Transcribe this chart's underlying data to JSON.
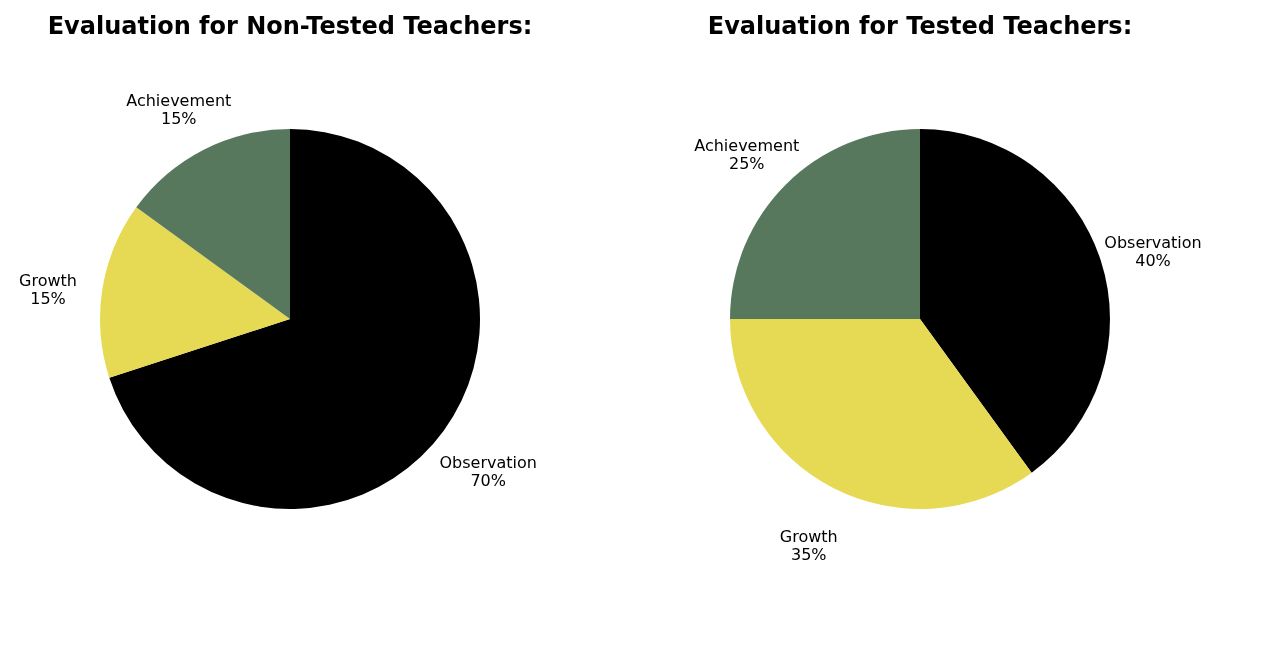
{
  "chart_data": [
    {
      "type": "pie",
      "title": "Evaluation for Non-Tested Teachers:",
      "categories": [
        "Observation",
        "Growth",
        "Achievement"
      ],
      "values": [
        70,
        15,
        15
      ],
      "value_labels": [
        "70%",
        "15%",
        "15%"
      ],
      "colors": [
        "#000000",
        "#e6da55",
        "#58785d"
      ]
    },
    {
      "type": "pie",
      "title": "Evaluation for Tested Teachers:",
      "categories": [
        "Observation",
        "Growth",
        "Achievement"
      ],
      "values": [
        40,
        35,
        25
      ],
      "value_labels": [
        "40%",
        "35%",
        "25%"
      ],
      "colors": [
        "#000000",
        "#e6da55",
        "#58785d"
      ]
    }
  ]
}
